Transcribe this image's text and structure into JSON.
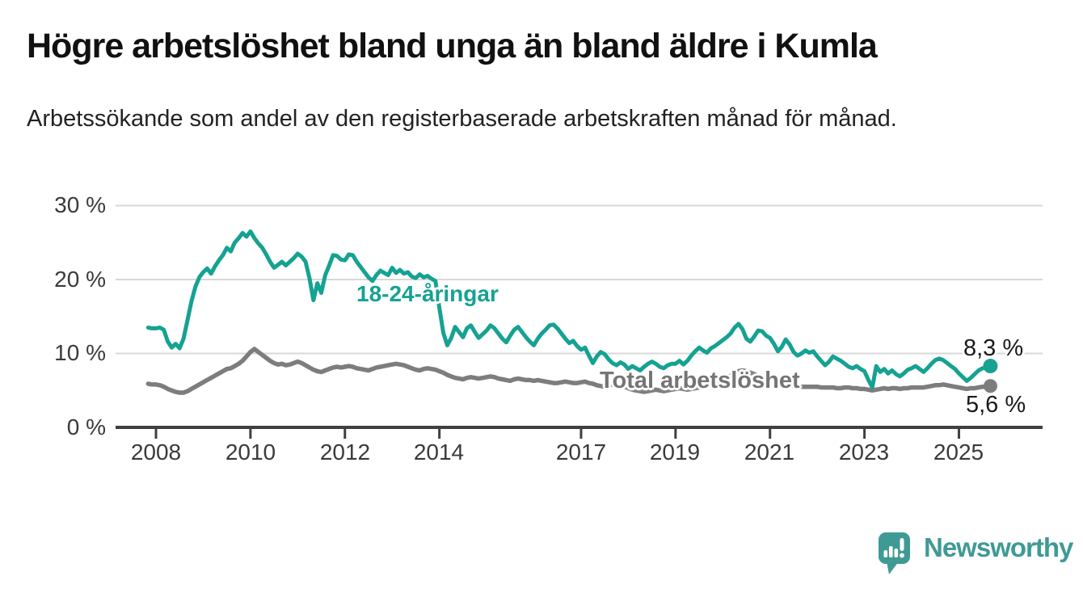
{
  "header": {
    "title": "Högre arbetslöshet bland unga än bland äldre i Kumla",
    "subtitle": "Arbetssökande som andel av den registerbaserade arbetskraften månad för månad."
  },
  "colors": {
    "youth_line": "#15a292",
    "total_line": "#7d7d7d",
    "total_label": "#757575",
    "gridline": "#d8d8d8",
    "axis": "#404040",
    "tick_text": "#3a3a3a",
    "logo_teal": "#3f9a94"
  },
  "branding": {
    "logo_text": "Newsworthy",
    "logo_icon": "speech-bubble-bar-chart-icon"
  },
  "chart_data": {
    "type": "line",
    "unit": "%",
    "frequency": "monthly",
    "start_month": "2007-11",
    "end_month": "2025-09",
    "grid": "horizontal",
    "ylim": [
      0,
      32
    ],
    "y_ticks": [
      0,
      10,
      20,
      30
    ],
    "y_tick_labels": [
      "0 %",
      "10 %",
      "20 %",
      "30 %"
    ],
    "x_tick_years": [
      2008,
      2010,
      2012,
      2014,
      2017,
      2019,
      2021,
      2023,
      2025
    ],
    "x_tick_labels": [
      "2008",
      "2010",
      "2012",
      "2014",
      "2017",
      "2019",
      "2021",
      "2023",
      "2025"
    ],
    "series": [
      {
        "name": "18-24-åringar",
        "label_text": "18-24-åringar",
        "color": "#15a292",
        "end_label": "8,3 %",
        "end_value": 8.3,
        "values": [
          13.5,
          13.4,
          13.4,
          13.5,
          13.2,
          11.6,
          10.8,
          11.3,
          10.7,
          12.0,
          14.5,
          17.0,
          19.0,
          20.3,
          21.0,
          21.5,
          20.8,
          21.8,
          22.6,
          23.3,
          24.3,
          23.8,
          25.0,
          25.6,
          26.3,
          25.8,
          26.5,
          25.6,
          24.9,
          24.3,
          23.4,
          22.4,
          21.6,
          22.0,
          22.4,
          21.9,
          22.4,
          22.9,
          23.5,
          23.1,
          22.4,
          20.2,
          17.2,
          19.5,
          18.2,
          20.6,
          21.9,
          23.3,
          23.2,
          22.7,
          22.6,
          23.4,
          23.3,
          22.4,
          21.7,
          21.0,
          20.3,
          19.8,
          20.6,
          21.2,
          20.9,
          20.6,
          21.6,
          20.9,
          21.3,
          20.8,
          21.0,
          20.4,
          20.2,
          20.7,
          20.3,
          20.5,
          20.1,
          19.8,
          16.2,
          12.8,
          11.1,
          12.1,
          13.6,
          12.9,
          12.2,
          13.4,
          13.8,
          12.9,
          12.1,
          12.6,
          13.1,
          13.8,
          13.4,
          12.7,
          12.0,
          11.5,
          12.4,
          13.2,
          13.6,
          12.9,
          12.2,
          11.6,
          11.1,
          12.0,
          12.7,
          13.2,
          13.8,
          13.9,
          13.4,
          12.7,
          12.0,
          11.4,
          11.7,
          11.0,
          10.5,
          10.8,
          9.7,
          8.7,
          9.6,
          10.2,
          9.9,
          9.2,
          8.7,
          8.4,
          8.8,
          8.5,
          7.9,
          8.3,
          8.0,
          7.7,
          8.2,
          8.6,
          8.9,
          8.6,
          8.2,
          8.0,
          8.4,
          8.6,
          8.6,
          9.0,
          8.5,
          9.0,
          9.7,
          10.3,
          10.8,
          10.4,
          10.1,
          10.7,
          11.0,
          11.4,
          11.8,
          12.2,
          12.7,
          13.5,
          14.0,
          13.3,
          12.0,
          11.6,
          12.3,
          13.1,
          13.0,
          12.4,
          12.1,
          11.3,
          10.3,
          10.9,
          11.9,
          11.2,
          10.2,
          9.7,
          10.0,
          10.4,
          10.1,
          10.3,
          9.6,
          9.0,
          8.4,
          8.9,
          9.6,
          9.3,
          9.0,
          8.6,
          8.2,
          8.0,
          8.3,
          7.9,
          7.6,
          6.4,
          5.4,
          8.3,
          7.5,
          7.9,
          7.3,
          7.7,
          7.2,
          6.9,
          7.3,
          7.8,
          8.0,
          8.3,
          7.9,
          7.5,
          8.0,
          8.6,
          9.1,
          9.3,
          9.1,
          8.7,
          8.3,
          7.9,
          7.3,
          6.8,
          6.3,
          6.7,
          7.2,
          7.7,
          8.0,
          8.1,
          8.3
        ]
      },
      {
        "name": "Total arbetslöshet",
        "label_text": "Total arbetslöshet",
        "color": "#7d7d7d",
        "end_label": "5,6 %",
        "end_value": 5.6,
        "values": [
          5.9,
          5.8,
          5.8,
          5.7,
          5.5,
          5.2,
          5.0,
          4.8,
          4.7,
          4.7,
          4.9,
          5.2,
          5.5,
          5.8,
          6.1,
          6.4,
          6.7,
          7.0,
          7.3,
          7.6,
          7.9,
          8.0,
          8.3,
          8.6,
          9.0,
          9.6,
          10.2,
          10.6,
          10.2,
          9.8,
          9.4,
          9.0,
          8.7,
          8.5,
          8.6,
          8.4,
          8.5,
          8.7,
          8.9,
          8.7,
          8.4,
          8.1,
          7.8,
          7.6,
          7.5,
          7.7,
          7.9,
          8.1,
          8.2,
          8.1,
          8.2,
          8.3,
          8.2,
          8.0,
          7.9,
          7.8,
          7.7,
          7.9,
          8.1,
          8.2,
          8.3,
          8.4,
          8.5,
          8.6,
          8.5,
          8.4,
          8.2,
          8.0,
          7.8,
          7.7,
          7.9,
          8.0,
          7.9,
          7.8,
          7.6,
          7.4,
          7.1,
          6.9,
          6.7,
          6.6,
          6.5,
          6.7,
          6.8,
          6.7,
          6.6,
          6.7,
          6.8,
          6.9,
          6.8,
          6.6,
          6.5,
          6.4,
          6.3,
          6.5,
          6.6,
          6.5,
          6.4,
          6.4,
          6.3,
          6.4,
          6.3,
          6.2,
          6.1,
          6.0,
          6.0,
          6.1,
          6.2,
          6.1,
          6.0,
          6.0,
          6.1,
          6.2,
          6.0,
          5.9,
          5.7,
          5.6,
          5.5,
          5.7,
          5.8,
          5.7,
          5.6,
          5.5,
          5.3,
          5.1,
          5.0,
          4.9,
          4.8,
          4.9,
          5.0,
          5.1,
          5.0,
          4.9,
          5.0,
          5.1,
          5.2,
          5.3,
          5.2,
          5.1,
          5.2,
          5.3,
          5.4,
          5.5,
          5.6,
          5.7,
          5.9,
          6.1,
          6.4,
          6.6,
          7.0,
          7.4,
          7.6,
          7.7,
          7.6,
          7.4,
          7.2,
          7.0,
          6.8,
          6.6,
          6.4,
          6.2,
          6.0,
          5.9,
          5.8,
          5.7,
          5.6,
          5.6,
          5.5,
          5.5,
          5.5,
          5.5,
          5.5,
          5.4,
          5.4,
          5.4,
          5.4,
          5.3,
          5.3,
          5.4,
          5.4,
          5.3,
          5.3,
          5.2,
          5.2,
          5.1,
          5.0,
          5.1,
          5.2,
          5.3,
          5.2,
          5.3,
          5.3,
          5.2,
          5.3,
          5.3,
          5.4,
          5.4,
          5.4,
          5.4,
          5.5,
          5.6,
          5.7,
          5.7,
          5.8,
          5.7,
          5.6,
          5.5,
          5.4,
          5.3,
          5.2,
          5.3,
          5.3,
          5.4,
          5.5,
          5.5,
          5.6
        ]
      }
    ]
  }
}
